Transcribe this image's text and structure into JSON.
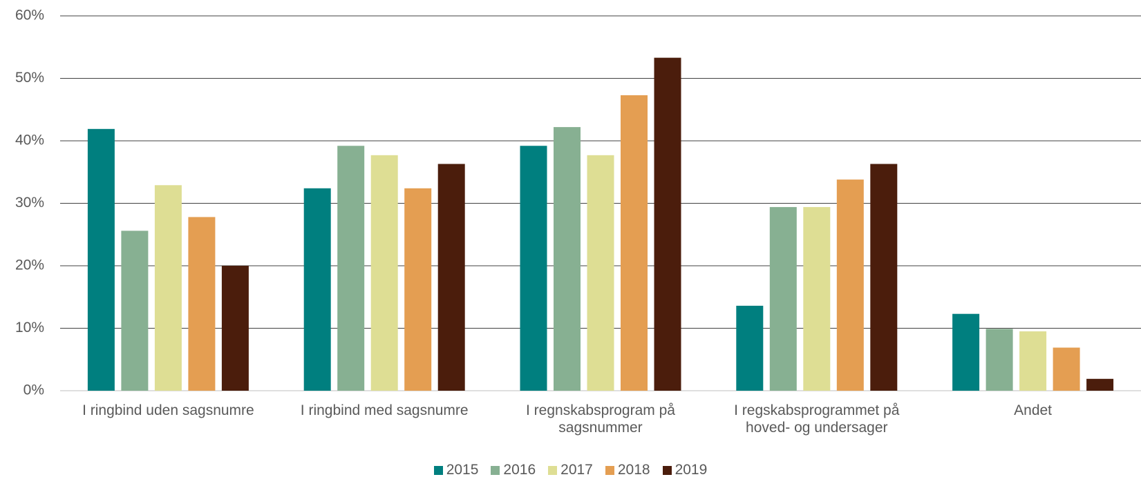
{
  "chart_data": {
    "type": "bar",
    "categories": [
      "I ringbind uden sagsnumre",
      "I ringbind med sagsnumre",
      "I regnskabsprogram på sagsnummer",
      "I regskabsprogrammet på hoved- og undersager",
      "Andet"
    ],
    "series": [
      {
        "name": "2015",
        "color": "#007f7f",
        "values": [
          41.9,
          32.4,
          39.2,
          13.6,
          12.3
        ]
      },
      {
        "name": "2016",
        "color": "#87b092",
        "values": [
          25.6,
          39.2,
          42.2,
          29.4,
          9.9
        ]
      },
      {
        "name": "2017",
        "color": "#dede94",
        "values": [
          32.9,
          37.7,
          37.7,
          29.4,
          9.5
        ]
      },
      {
        "name": "2018",
        "color": "#e49e52",
        "values": [
          27.8,
          32.4,
          47.3,
          33.8,
          6.9
        ]
      },
      {
        "name": "2019",
        "color": "#4b1d0c",
        "values": [
          20.0,
          36.3,
          53.3,
          36.3,
          1.9
        ]
      }
    ],
    "ylim": [
      0,
      60
    ],
    "yticks": [
      {
        "value": 0,
        "label": "0%"
      },
      {
        "value": 10,
        "label": "10%"
      },
      {
        "value": 20,
        "label": "20%"
      },
      {
        "value": 30,
        "label": "30%"
      },
      {
        "value": 40,
        "label": "40%"
      },
      {
        "value": 50,
        "label": "50%"
      },
      {
        "value": 60,
        "label": "60%"
      }
    ],
    "grid": true,
    "legend": "bottom"
  }
}
